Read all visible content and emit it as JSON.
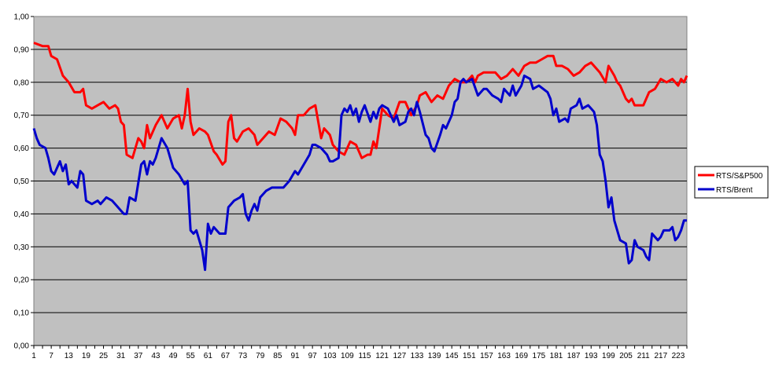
{
  "chart_data": {
    "type": "line",
    "title": "",
    "xlabel": "",
    "ylabel": "",
    "ylim": [
      0,
      1
    ],
    "y_ticks": [
      "0,00",
      "0,10",
      "0,20",
      "0,30",
      "0,40",
      "0,50",
      "0,60",
      "0,70",
      "0,80",
      "0,90",
      "1,00"
    ],
    "x_tick_labels": [
      "1",
      "7",
      "13",
      "19",
      "25",
      "31",
      "37",
      "43",
      "49",
      "55",
      "61",
      "67",
      "73",
      "79",
      "85",
      "91",
      "97",
      "103",
      "109",
      "115",
      "121",
      "127",
      "133",
      "139",
      "145",
      "151",
      "157",
      "163",
      "169",
      "175",
      "181",
      "187",
      "193",
      "199",
      "205",
      "211",
      "217",
      "223"
    ],
    "x_range": [
      1,
      226
    ],
    "grid": "horizontal",
    "plot_background": "#c0c0c0",
    "legend_position": "right",
    "series": [
      {
        "name": "RTS/S&P500",
        "color": "#ff0000",
        "points": [
          [
            1,
            0.92
          ],
          [
            4,
            0.91
          ],
          [
            6,
            0.91
          ],
          [
            7,
            0.88
          ],
          [
            9,
            0.87
          ],
          [
            11,
            0.82
          ],
          [
            13,
            0.8
          ],
          [
            15,
            0.77
          ],
          [
            17,
            0.77
          ],
          [
            18,
            0.78
          ],
          [
            19,
            0.73
          ],
          [
            21,
            0.72
          ],
          [
            23,
            0.73
          ],
          [
            25,
            0.74
          ],
          [
            27,
            0.72
          ],
          [
            29,
            0.73
          ],
          [
            30,
            0.72
          ],
          [
            31,
            0.68
          ],
          [
            32,
            0.67
          ],
          [
            33,
            0.58
          ],
          [
            35,
            0.57
          ],
          [
            37,
            0.63
          ],
          [
            38,
            0.62
          ],
          [
            39,
            0.6
          ],
          [
            40,
            0.67
          ],
          [
            41,
            0.63
          ],
          [
            43,
            0.67
          ],
          [
            45,
            0.7
          ],
          [
            47,
            0.66
          ],
          [
            49,
            0.69
          ],
          [
            51,
            0.7
          ],
          [
            52,
            0.66
          ],
          [
            53,
            0.7
          ],
          [
            54,
            0.78
          ],
          [
            55,
            0.68
          ],
          [
            56,
            0.64
          ],
          [
            58,
            0.66
          ],
          [
            60,
            0.65
          ],
          [
            61,
            0.64
          ],
          [
            63,
            0.59
          ],
          [
            64,
            0.58
          ],
          [
            66,
            0.55
          ],
          [
            67,
            0.56
          ],
          [
            68,
            0.68
          ],
          [
            69,
            0.7
          ],
          [
            70,
            0.63
          ],
          [
            71,
            0.62
          ],
          [
            73,
            0.65
          ],
          [
            75,
            0.66
          ],
          [
            77,
            0.64
          ],
          [
            78,
            0.61
          ],
          [
            80,
            0.63
          ],
          [
            82,
            0.65
          ],
          [
            84,
            0.64
          ],
          [
            86,
            0.69
          ],
          [
            88,
            0.68
          ],
          [
            90,
            0.66
          ],
          [
            91,
            0.64
          ],
          [
            92,
            0.7
          ],
          [
            94,
            0.7
          ],
          [
            96,
            0.72
          ],
          [
            98,
            0.73
          ],
          [
            100,
            0.63
          ],
          [
            101,
            0.66
          ],
          [
            103,
            0.64
          ],
          [
            104,
            0.61
          ],
          [
            106,
            0.59
          ],
          [
            108,
            0.58
          ],
          [
            110,
            0.62
          ],
          [
            112,
            0.61
          ],
          [
            114,
            0.57
          ],
          [
            116,
            0.58
          ],
          [
            117,
            0.58
          ],
          [
            118,
            0.62
          ],
          [
            119,
            0.6
          ],
          [
            120,
            0.66
          ],
          [
            121,
            0.72
          ],
          [
            123,
            0.7
          ],
          [
            125,
            0.69
          ],
          [
            127,
            0.74
          ],
          [
            129,
            0.74
          ],
          [
            131,
            0.7
          ],
          [
            133,
            0.73
          ],
          [
            134,
            0.76
          ],
          [
            136,
            0.77
          ],
          [
            138,
            0.74
          ],
          [
            140,
            0.76
          ],
          [
            142,
            0.75
          ],
          [
            144,
            0.79
          ],
          [
            146,
            0.81
          ],
          [
            148,
            0.8
          ],
          [
            150,
            0.8
          ],
          [
            152,
            0.82
          ],
          [
            153,
            0.8
          ],
          [
            154,
            0.82
          ],
          [
            156,
            0.83
          ],
          [
            158,
            0.83
          ],
          [
            160,
            0.83
          ],
          [
            162,
            0.81
          ],
          [
            164,
            0.82
          ],
          [
            166,
            0.84
          ],
          [
            168,
            0.82
          ],
          [
            170,
            0.85
          ],
          [
            172,
            0.86
          ],
          [
            174,
            0.86
          ],
          [
            176,
            0.87
          ],
          [
            178,
            0.88
          ],
          [
            180,
            0.88
          ],
          [
            181,
            0.85
          ],
          [
            183,
            0.85
          ],
          [
            185,
            0.84
          ],
          [
            187,
            0.82
          ],
          [
            189,
            0.83
          ],
          [
            191,
            0.85
          ],
          [
            193,
            0.86
          ],
          [
            195,
            0.84
          ],
          [
            196,
            0.83
          ],
          [
            198,
            0.8
          ],
          [
            199,
            0.85
          ],
          [
            201,
            0.82
          ],
          [
            202,
            0.8
          ],
          [
            203,
            0.79
          ],
          [
            205,
            0.75
          ],
          [
            206,
            0.74
          ],
          [
            207,
            0.75
          ],
          [
            208,
            0.73
          ],
          [
            211,
            0.73
          ],
          [
            213,
            0.77
          ],
          [
            215,
            0.78
          ],
          [
            217,
            0.81
          ],
          [
            219,
            0.8
          ],
          [
            221,
            0.81
          ],
          [
            223,
            0.79
          ],
          [
            224,
            0.81
          ],
          [
            225,
            0.8
          ],
          [
            226,
            0.82
          ]
        ]
      },
      {
        "name": "RTS/Brent",
        "color": "#0000cc",
        "points": [
          [
            1,
            0.66
          ],
          [
            2,
            0.63
          ],
          [
            3,
            0.61
          ],
          [
            5,
            0.6
          ],
          [
            6,
            0.57
          ],
          [
            7,
            0.53
          ],
          [
            8,
            0.52
          ],
          [
            10,
            0.56
          ],
          [
            11,
            0.53
          ],
          [
            12,
            0.55
          ],
          [
            13,
            0.49
          ],
          [
            14,
            0.5
          ],
          [
            15,
            0.49
          ],
          [
            16,
            0.48
          ],
          [
            17,
            0.53
          ],
          [
            18,
            0.52
          ],
          [
            19,
            0.44
          ],
          [
            21,
            0.43
          ],
          [
            23,
            0.44
          ],
          [
            24,
            0.43
          ],
          [
            26,
            0.45
          ],
          [
            28,
            0.44
          ],
          [
            30,
            0.42
          ],
          [
            31,
            0.41
          ],
          [
            32,
            0.4
          ],
          [
            33,
            0.4
          ],
          [
            34,
            0.45
          ],
          [
            36,
            0.44
          ],
          [
            38,
            0.55
          ],
          [
            39,
            0.56
          ],
          [
            40,
            0.52
          ],
          [
            41,
            0.56
          ],
          [
            42,
            0.55
          ],
          [
            43,
            0.57
          ],
          [
            45,
            0.63
          ],
          [
            47,
            0.6
          ],
          [
            48,
            0.57
          ],
          [
            49,
            0.54
          ],
          [
            51,
            0.52
          ],
          [
            53,
            0.49
          ],
          [
            54,
            0.5
          ],
          [
            55,
            0.35
          ],
          [
            56,
            0.34
          ],
          [
            57,
            0.35
          ],
          [
            58,
            0.32
          ],
          [
            59,
            0.29
          ],
          [
            60,
            0.23
          ],
          [
            61,
            0.37
          ],
          [
            62,
            0.34
          ],
          [
            63,
            0.36
          ],
          [
            64,
            0.35
          ],
          [
            65,
            0.34
          ],
          [
            67,
            0.34
          ],
          [
            68,
            0.42
          ],
          [
            70,
            0.44
          ],
          [
            72,
            0.45
          ],
          [
            73,
            0.46
          ],
          [
            74,
            0.4
          ],
          [
            75,
            0.38
          ],
          [
            76,
            0.41
          ],
          [
            77,
            0.43
          ],
          [
            78,
            0.41
          ],
          [
            79,
            0.45
          ],
          [
            81,
            0.47
          ],
          [
            83,
            0.48
          ],
          [
            85,
            0.48
          ],
          [
            87,
            0.48
          ],
          [
            89,
            0.5
          ],
          [
            91,
            0.53
          ],
          [
            92,
            0.52
          ],
          [
            94,
            0.55
          ],
          [
            96,
            0.58
          ],
          [
            97,
            0.61
          ],
          [
            98,
            0.61
          ],
          [
            100,
            0.6
          ],
          [
            102,
            0.58
          ],
          [
            103,
            0.56
          ],
          [
            104,
            0.56
          ],
          [
            106,
            0.57
          ],
          [
            107,
            0.7
          ],
          [
            108,
            0.72
          ],
          [
            109,
            0.71
          ],
          [
            110,
            0.73
          ],
          [
            111,
            0.7
          ],
          [
            112,
            0.72
          ],
          [
            113,
            0.68
          ],
          [
            114,
            0.71
          ],
          [
            115,
            0.73
          ],
          [
            117,
            0.68
          ],
          [
            118,
            0.71
          ],
          [
            119,
            0.69
          ],
          [
            120,
            0.72
          ],
          [
            121,
            0.73
          ],
          [
            123,
            0.72
          ],
          [
            125,
            0.68
          ],
          [
            126,
            0.7
          ],
          [
            127,
            0.67
          ],
          [
            129,
            0.68
          ],
          [
            130,
            0.71
          ],
          [
            131,
            0.72
          ],
          [
            132,
            0.7
          ],
          [
            133,
            0.74
          ],
          [
            134,
            0.71
          ],
          [
            136,
            0.64
          ],
          [
            137,
            0.63
          ],
          [
            138,
            0.6
          ],
          [
            139,
            0.59
          ],
          [
            141,
            0.64
          ],
          [
            142,
            0.67
          ],
          [
            143,
            0.66
          ],
          [
            145,
            0.7
          ],
          [
            146,
            0.74
          ],
          [
            147,
            0.75
          ],
          [
            148,
            0.8
          ],
          [
            149,
            0.81
          ],
          [
            150,
            0.8
          ],
          [
            152,
            0.81
          ],
          [
            154,
            0.76
          ],
          [
            156,
            0.78
          ],
          [
            157,
            0.78
          ],
          [
            159,
            0.76
          ],
          [
            161,
            0.75
          ],
          [
            162,
            0.74
          ],
          [
            163,
            0.78
          ],
          [
            165,
            0.76
          ],
          [
            166,
            0.79
          ],
          [
            167,
            0.76
          ],
          [
            169,
            0.79
          ],
          [
            170,
            0.82
          ],
          [
            172,
            0.81
          ],
          [
            173,
            0.78
          ],
          [
            175,
            0.79
          ],
          [
            178,
            0.77
          ],
          [
            179,
            0.75
          ],
          [
            180,
            0.7
          ],
          [
            181,
            0.72
          ],
          [
            182,
            0.68
          ],
          [
            184,
            0.69
          ],
          [
            185,
            0.68
          ],
          [
            186,
            0.72
          ],
          [
            188,
            0.73
          ],
          [
            189,
            0.75
          ],
          [
            190,
            0.72
          ],
          [
            192,
            0.73
          ],
          [
            193,
            0.72
          ],
          [
            194,
            0.71
          ],
          [
            195,
            0.67
          ],
          [
            196,
            0.58
          ],
          [
            197,
            0.56
          ],
          [
            198,
            0.5
          ],
          [
            199,
            0.42
          ],
          [
            200,
            0.45
          ],
          [
            201,
            0.38
          ],
          [
            202,
            0.35
          ],
          [
            203,
            0.32
          ],
          [
            205,
            0.31
          ],
          [
            206,
            0.25
          ],
          [
            207,
            0.26
          ],
          [
            208,
            0.32
          ],
          [
            209,
            0.3
          ],
          [
            211,
            0.29
          ],
          [
            212,
            0.27
          ],
          [
            213,
            0.26
          ],
          [
            214,
            0.34
          ],
          [
            216,
            0.32
          ],
          [
            217,
            0.33
          ],
          [
            218,
            0.35
          ],
          [
            220,
            0.35
          ],
          [
            221,
            0.36
          ],
          [
            222,
            0.32
          ],
          [
            223,
            0.33
          ],
          [
            224,
            0.35
          ],
          [
            225,
            0.38
          ],
          [
            226,
            0.38
          ]
        ]
      }
    ]
  }
}
